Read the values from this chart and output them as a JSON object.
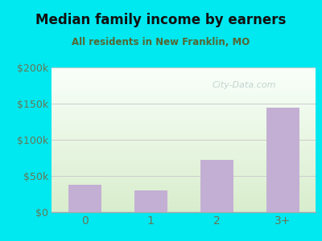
{
  "title": "Median family income by earners",
  "subtitle": "All residents in New Franklin, MO",
  "categories": [
    "0",
    "1",
    "2",
    "3+"
  ],
  "values": [
    38000,
    30000,
    72000,
    145000
  ],
  "bar_color": "#c4afd4",
  "ylim": [
    0,
    200000
  ],
  "yticks": [
    0,
    50000,
    100000,
    150000,
    200000
  ],
  "ytick_labels": [
    "$0",
    "$50k",
    "$100k",
    "$150k",
    "$200k"
  ],
  "bg_color": "#00e8f0",
  "plot_bg_top": "#f8ffff",
  "plot_bg_bottom": "#d8eecc",
  "title_color": "#111111",
  "subtitle_color": "#556633",
  "tick_color": "#667755",
  "watermark": "City-Data.com",
  "watermark_color": "#bbcccc",
  "grid_color": "#cccccc",
  "bottom_line_color": "#aaaaaa"
}
